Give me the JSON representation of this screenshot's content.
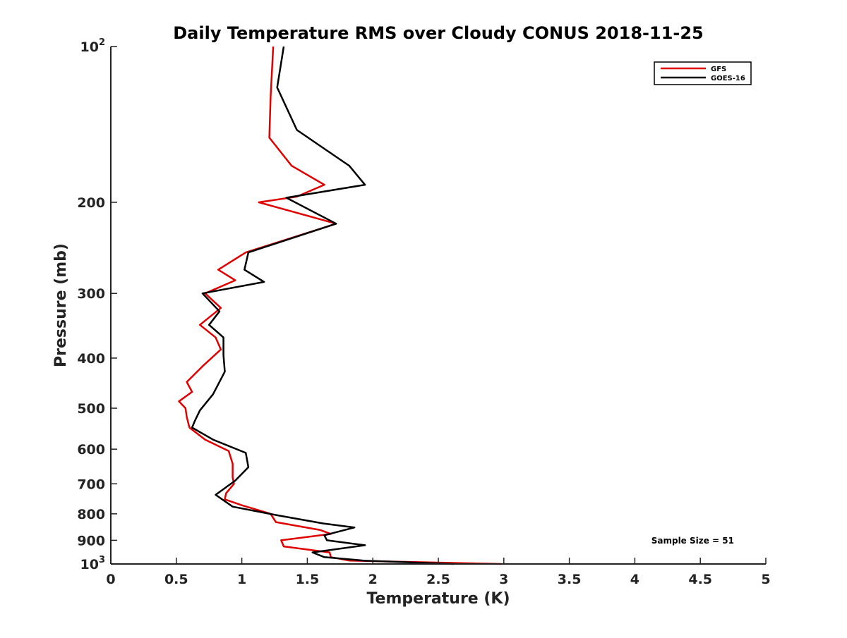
{
  "chart_data": {
    "type": "line",
    "title": "Daily Temperature RMS over Cloudy CONUS 2018-11-25",
    "xlabel": "Temperature (K)",
    "ylabel": "Pressure (mb)",
    "xlim": [
      0,
      5
    ],
    "ylim": [
      100,
      1000
    ],
    "y_scale": "log",
    "y_reversed": true,
    "grid": false,
    "legend_position": "top-right",
    "x_ticks": [
      "0",
      "0.5",
      "1",
      "1.5",
      "2",
      "2.5",
      "3",
      "3.5",
      "4",
      "4.5",
      "5"
    ],
    "y_ticks": [
      {
        "value": 100,
        "base": "10",
        "exp": "2"
      },
      {
        "value": 200,
        "label": "200"
      },
      {
        "value": 300,
        "label": "300"
      },
      {
        "value": 400,
        "label": "400"
      },
      {
        "value": 500,
        "label": "500"
      },
      {
        "value": 600,
        "label": "600"
      },
      {
        "value": 700,
        "label": "700"
      },
      {
        "value": 800,
        "label": "800"
      },
      {
        "value": 900,
        "label": "900"
      },
      {
        "value": 1000,
        "base": "10",
        "exp": "3"
      }
    ],
    "annotation": "Sample Size = 51",
    "series": [
      {
        "name": "GFS",
        "color": "#e00000",
        "points": [
          [
            1.24,
            100
          ],
          [
            1.22,
            125
          ],
          [
            1.21,
            150
          ],
          [
            1.38,
            170
          ],
          [
            1.63,
            185
          ],
          [
            1.42,
            195
          ],
          [
            1.13,
            200
          ],
          [
            1.72,
            220
          ],
          [
            1.03,
            250
          ],
          [
            0.82,
            270
          ],
          [
            0.95,
            283
          ],
          [
            0.72,
            300
          ],
          [
            0.84,
            320
          ],
          [
            0.68,
            345
          ],
          [
            0.8,
            365
          ],
          [
            0.84,
            385
          ],
          [
            0.7,
            415
          ],
          [
            0.58,
            445
          ],
          [
            0.62,
            465
          ],
          [
            0.52,
            485
          ],
          [
            0.57,
            500
          ],
          [
            0.58,
            520
          ],
          [
            0.6,
            545
          ],
          [
            0.72,
            575
          ],
          [
            0.9,
            605
          ],
          [
            0.93,
            640
          ],
          [
            0.93,
            680
          ],
          [
            0.94,
            700
          ],
          [
            0.88,
            730
          ],
          [
            0.87,
            750
          ],
          [
            1.0,
            770
          ],
          [
            1.22,
            800
          ],
          [
            1.26,
            830
          ],
          [
            1.6,
            860
          ],
          [
            1.68,
            875
          ],
          [
            1.3,
            900
          ],
          [
            1.32,
            925
          ],
          [
            1.67,
            950
          ],
          [
            1.68,
            970
          ],
          [
            1.82,
            985
          ],
          [
            2.98,
            1000
          ]
        ]
      },
      {
        "name": "GOES-16",
        "color": "#000000",
        "points": [
          [
            1.32,
            100
          ],
          [
            1.27,
            120
          ],
          [
            1.42,
            145
          ],
          [
            1.82,
            170
          ],
          [
            1.94,
            185
          ],
          [
            1.34,
            196
          ],
          [
            1.72,
            220
          ],
          [
            1.05,
            250
          ],
          [
            1.02,
            270
          ],
          [
            1.17,
            285
          ],
          [
            0.7,
            300
          ],
          [
            0.83,
            325
          ],
          [
            0.75,
            345
          ],
          [
            0.86,
            365
          ],
          [
            0.86,
            395
          ],
          [
            0.87,
            425
          ],
          [
            0.78,
            470
          ],
          [
            0.68,
            505
          ],
          [
            0.64,
            530
          ],
          [
            0.62,
            545
          ],
          [
            0.78,
            575
          ],
          [
            1.03,
            610
          ],
          [
            1.05,
            650
          ],
          [
            0.95,
            690
          ],
          [
            0.8,
            735
          ],
          [
            0.93,
            775
          ],
          [
            1.27,
            805
          ],
          [
            1.62,
            835
          ],
          [
            1.86,
            850
          ],
          [
            1.63,
            880
          ],
          [
            1.65,
            900
          ],
          [
            1.94,
            920
          ],
          [
            1.54,
            950
          ],
          [
            1.63,
            970
          ],
          [
            1.93,
            985
          ],
          [
            2.62,
            1000
          ]
        ]
      }
    ]
  }
}
